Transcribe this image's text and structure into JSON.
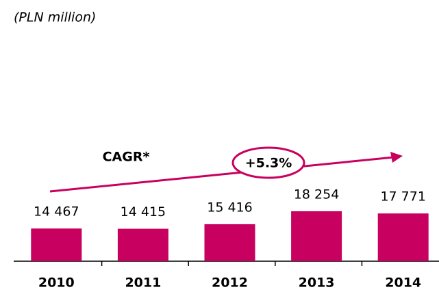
{
  "chart_data": {
    "type": "bar",
    "subtitle": "(PLN million)",
    "categories": [
      "2010",
      "2011",
      "2012",
      "2013",
      "2014"
    ],
    "values": [
      14467,
      14415,
      15416,
      18254,
      17771
    ],
    "value_labels": [
      "14 467",
      "14 415",
      "15 416",
      "18 254",
      "17 771"
    ],
    "color": "#c8005f",
    "ylim": [
      7300,
      40000
    ],
    "annotations": [
      "CAGR*",
      "+5.3%"
    ]
  }
}
